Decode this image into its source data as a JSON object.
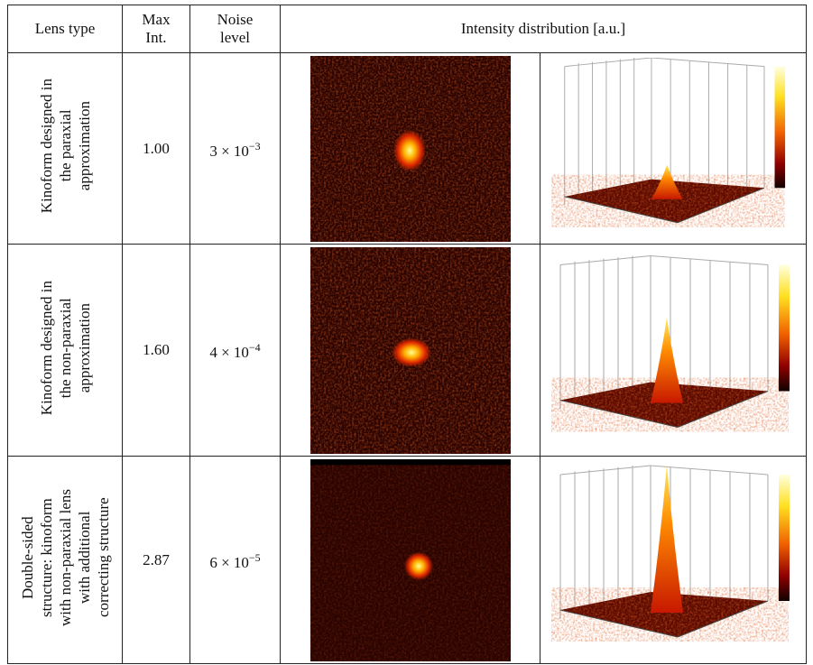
{
  "table": {
    "header": [
      "Lens type",
      "Max Int.",
      "Noise level",
      "Intensity distribution [a.u.]"
    ],
    "rows": [
      {
        "lens_type": [
          "Kinoform designed in",
          "the paraxial",
          "approximation"
        ],
        "max_int": "1.00",
        "noise": {
          "base": "3 × 10",
          "exponent": "−3"
        }
      },
      {
        "lens_type": [
          "Kinoform designed in",
          "the non-paraxial",
          "approximation"
        ],
        "max_int": "1.60",
        "noise": {
          "base": "4 × 10",
          "exponent": "−4"
        }
      },
      {
        "lens_type": [
          "Double-sided",
          "structure: kinoform",
          "with non-paraxial lens",
          "with additional",
          "correcting structure"
        ],
        "max_int": "2.87",
        "noise": {
          "base": "6 × 10",
          "exponent": "−5"
        }
      }
    ]
  }
}
